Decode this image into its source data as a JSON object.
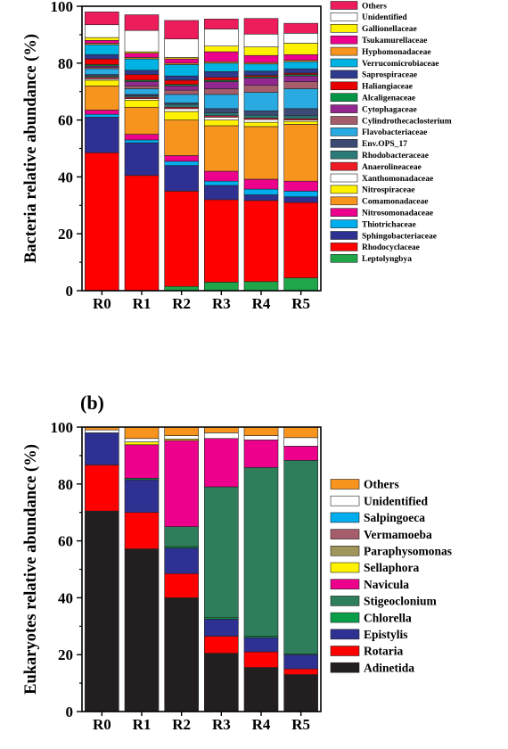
{
  "chart_data": [
    {
      "type": "bar",
      "stacked": true,
      "panel_label": "",
      "ylabel": "Bacteria relative abundance (%)",
      "xlabel": "",
      "ylim": [
        0,
        100
      ],
      "yticks": [
        0,
        20,
        40,
        60,
        80,
        100
      ],
      "categories": [
        "R0",
        "R1",
        "R2",
        "R3",
        "R4",
        "R5"
      ],
      "legend_position": "right",
      "series": [
        {
          "name": "Leptolyngbya",
          "color": "#1fa64a",
          "values": [
            0,
            0,
            1.5,
            3,
            3.2,
            4.5
          ]
        },
        {
          "name": "Rhodocyclaceae",
          "color": "#ff0000",
          "values": [
            48.5,
            40.5,
            33.5,
            29,
            28.5,
            26.5
          ]
        },
        {
          "name": "Sphingobacteriaceae",
          "color": "#2e3192",
          "values": [
            12.5,
            11.5,
            9,
            5,
            2,
            2
          ]
        },
        {
          "name": "Thiotrichaceae",
          "color": "#00aeef",
          "values": [
            1,
            1,
            1.5,
            1.5,
            2,
            2
          ]
        },
        {
          "name": "Nitrosomonadaceae",
          "color": "#ec008c",
          "values": [
            1.5,
            2,
            2,
            3.5,
            3.5,
            3.5
          ]
        },
        {
          "name": "Comamonadaceae",
          "color": "#f7941d",
          "values": [
            8.5,
            9.5,
            12.5,
            16,
            18.5,
            20
          ]
        },
        {
          "name": "Nitrospiraceae",
          "color": "#fff200",
          "values": [
            2,
            2.5,
            3,
            2,
            1.5,
            1
          ]
        },
        {
          "name": "Xanthomonadaceae",
          "color": "#ffffff",
          "values": [
            0.5,
            0.5,
            1,
            1,
            1,
            0.5
          ]
        },
        {
          "name": "Anaerolineaceae",
          "color": "#ed1c24",
          "values": [
            0.5,
            0.5,
            0.5,
            0.5,
            0.5,
            0.5
          ]
        },
        {
          "name": "Rhodobacteraceae",
          "color": "#2b7a78",
          "values": [
            0.5,
            0.5,
            1,
            1,
            1,
            1
          ]
        },
        {
          "name": "Env.OPS_17",
          "color": "#3d4a73",
          "values": [
            0.5,
            0.5,
            0.5,
            1.5,
            1.5,
            2.5
          ]
        },
        {
          "name": "Flavobacteriaceae",
          "color": "#29abe2",
          "values": [
            2,
            2,
            3,
            5,
            6.5,
            7
          ]
        },
        {
          "name": "Cylindrothecaclosterium",
          "color": "#a55d6b",
          "values": [
            0.5,
            1,
            1.5,
            2,
            2.5,
            2.5
          ]
        },
        {
          "name": "Cytophagaceae",
          "color": "#92278f",
          "values": [
            0.5,
            1.5,
            1.5,
            2.5,
            2.5,
            2
          ]
        },
        {
          "name": "Alcaligenaceae",
          "color": "#009444",
          "values": [
            0.5,
            0.5,
            0.5,
            0.5,
            0.5,
            0.5
          ]
        },
        {
          "name": "Haliangiaceae",
          "color": "#e80000",
          "values": [
            2,
            2,
            1.5,
            1,
            0.5,
            0.5
          ]
        },
        {
          "name": "Saprospiraceae",
          "color": "#2e3a8c",
          "values": [
            1.5,
            1.5,
            1.5,
            2,
            1.5,
            1.5
          ]
        },
        {
          "name": "Verrucomicrobiaceae",
          "color": "#00b3e3",
          "values": [
            3.5,
            4,
            4,
            3,
            2.5,
            2.5
          ]
        },
        {
          "name": "Hyphomonadaceae",
          "color": "#f7941d",
          "values": [
            0.5,
            0.5,
            0.5,
            0.5,
            0.5,
            0.5
          ]
        },
        {
          "name": "Tsukamurellaceae",
          "color": "#ec008c",
          "values": [
            1,
            1.5,
            1.5,
            3.5,
            2.5,
            2
          ]
        },
        {
          "name": "Gallionellaceae",
          "color": "#fff200",
          "values": [
            1,
            0.5,
            0.5,
            2,
            3,
            4
          ]
        },
        {
          "name": "Unidentified",
          "color": "#ffffff",
          "values": [
            4.5,
            7.5,
            6.5,
            6,
            4.5,
            3.5
          ]
        },
        {
          "name": "Others",
          "color": "#ed1c5b",
          "values": [
            4.5,
            5.5,
            6.5,
            3.5,
            5.5,
            3.5
          ]
        }
      ]
    },
    {
      "type": "bar",
      "stacked": true,
      "panel_label": "(b)",
      "ylabel": "Eukaryotes relative abundance (%)",
      "xlabel": "",
      "ylim": [
        0,
        100
      ],
      "yticks": [
        0,
        20,
        40,
        60,
        80,
        100
      ],
      "categories": [
        "R0",
        "R1",
        "R2",
        "R3",
        "R4",
        "R5"
      ],
      "legend_position": "right",
      "series": [
        {
          "name": "Adinetida",
          "color": "#231f20",
          "values": [
            70.5,
            57.2,
            40,
            20.5,
            15.5,
            13
          ]
        },
        {
          "name": "Rotaria",
          "color": "#ff0000",
          "values": [
            16.2,
            12.8,
            8.5,
            6,
            5.5,
            2
          ]
        },
        {
          "name": "Epistylis",
          "color": "#2e3192",
          "values": [
            11.3,
            11.5,
            9,
            6,
            5,
            5
          ]
        },
        {
          "name": "Chlorella",
          "color": "#0a9d4a",
          "values": [
            0,
            0.5,
            0.5,
            0.5,
            0.5,
            0.3
          ]
        },
        {
          "name": "Stigeoclonium",
          "color": "#2e7d5b",
          "values": [
            0,
            0,
            7,
            46,
            59.3,
            68
          ]
        },
        {
          "name": "Navicula",
          "color": "#ec008c",
          "values": [
            0,
            11.8,
            30.3,
            17,
            9.7,
            5
          ]
        },
        {
          "name": "Sellaphora",
          "color": "#fff200",
          "values": [
            0,
            1,
            0.5,
            0,
            0,
            0
          ]
        },
        {
          "name": "Paraphysomonas",
          "color": "#a0955a",
          "values": [
            0,
            0,
            0,
            0,
            0,
            0
          ]
        },
        {
          "name": "Vermamoeba",
          "color": "#a55d6b",
          "values": [
            0,
            0,
            0,
            0,
            0,
            0
          ]
        },
        {
          "name": "Salpingoeca",
          "color": "#00aeef",
          "values": [
            0,
            0,
            0,
            0,
            0,
            0
          ]
        },
        {
          "name": "Unidentified",
          "color": "#ffffff",
          "values": [
            1,
            1.2,
            1.2,
            2,
            1.5,
            3
          ]
        },
        {
          "name": "Others",
          "color": "#f7941d",
          "values": [
            1,
            4,
            3,
            2,
            3,
            3.7
          ]
        }
      ]
    }
  ]
}
